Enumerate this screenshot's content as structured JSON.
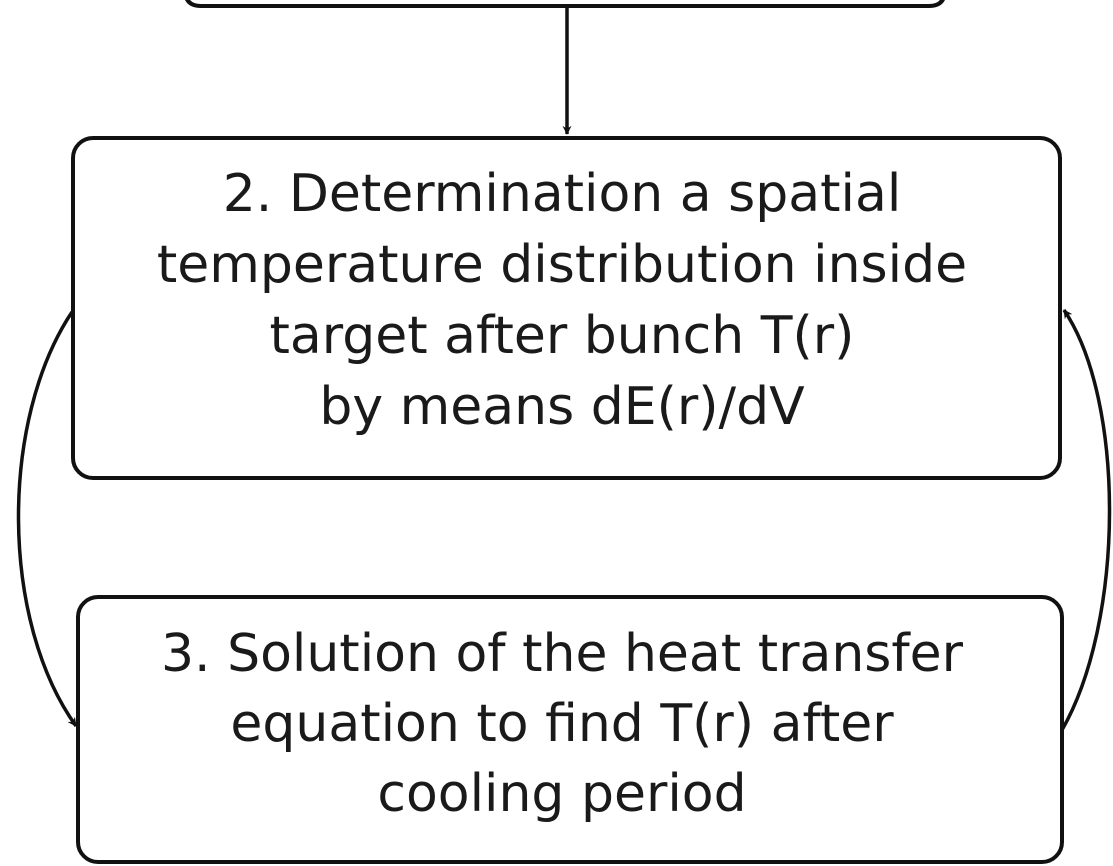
{
  "nodes": [
    {
      "lines": [
        "2. Determination a spatial",
        "temperature distribution inside",
        "target after bunch T(r)",
        "by means dE(r)/dV"
      ]
    },
    {
      "lines": [
        "3. Solution of the heat transfer",
        "equation to find T(r) after",
        "cooling period"
      ]
    }
  ]
}
